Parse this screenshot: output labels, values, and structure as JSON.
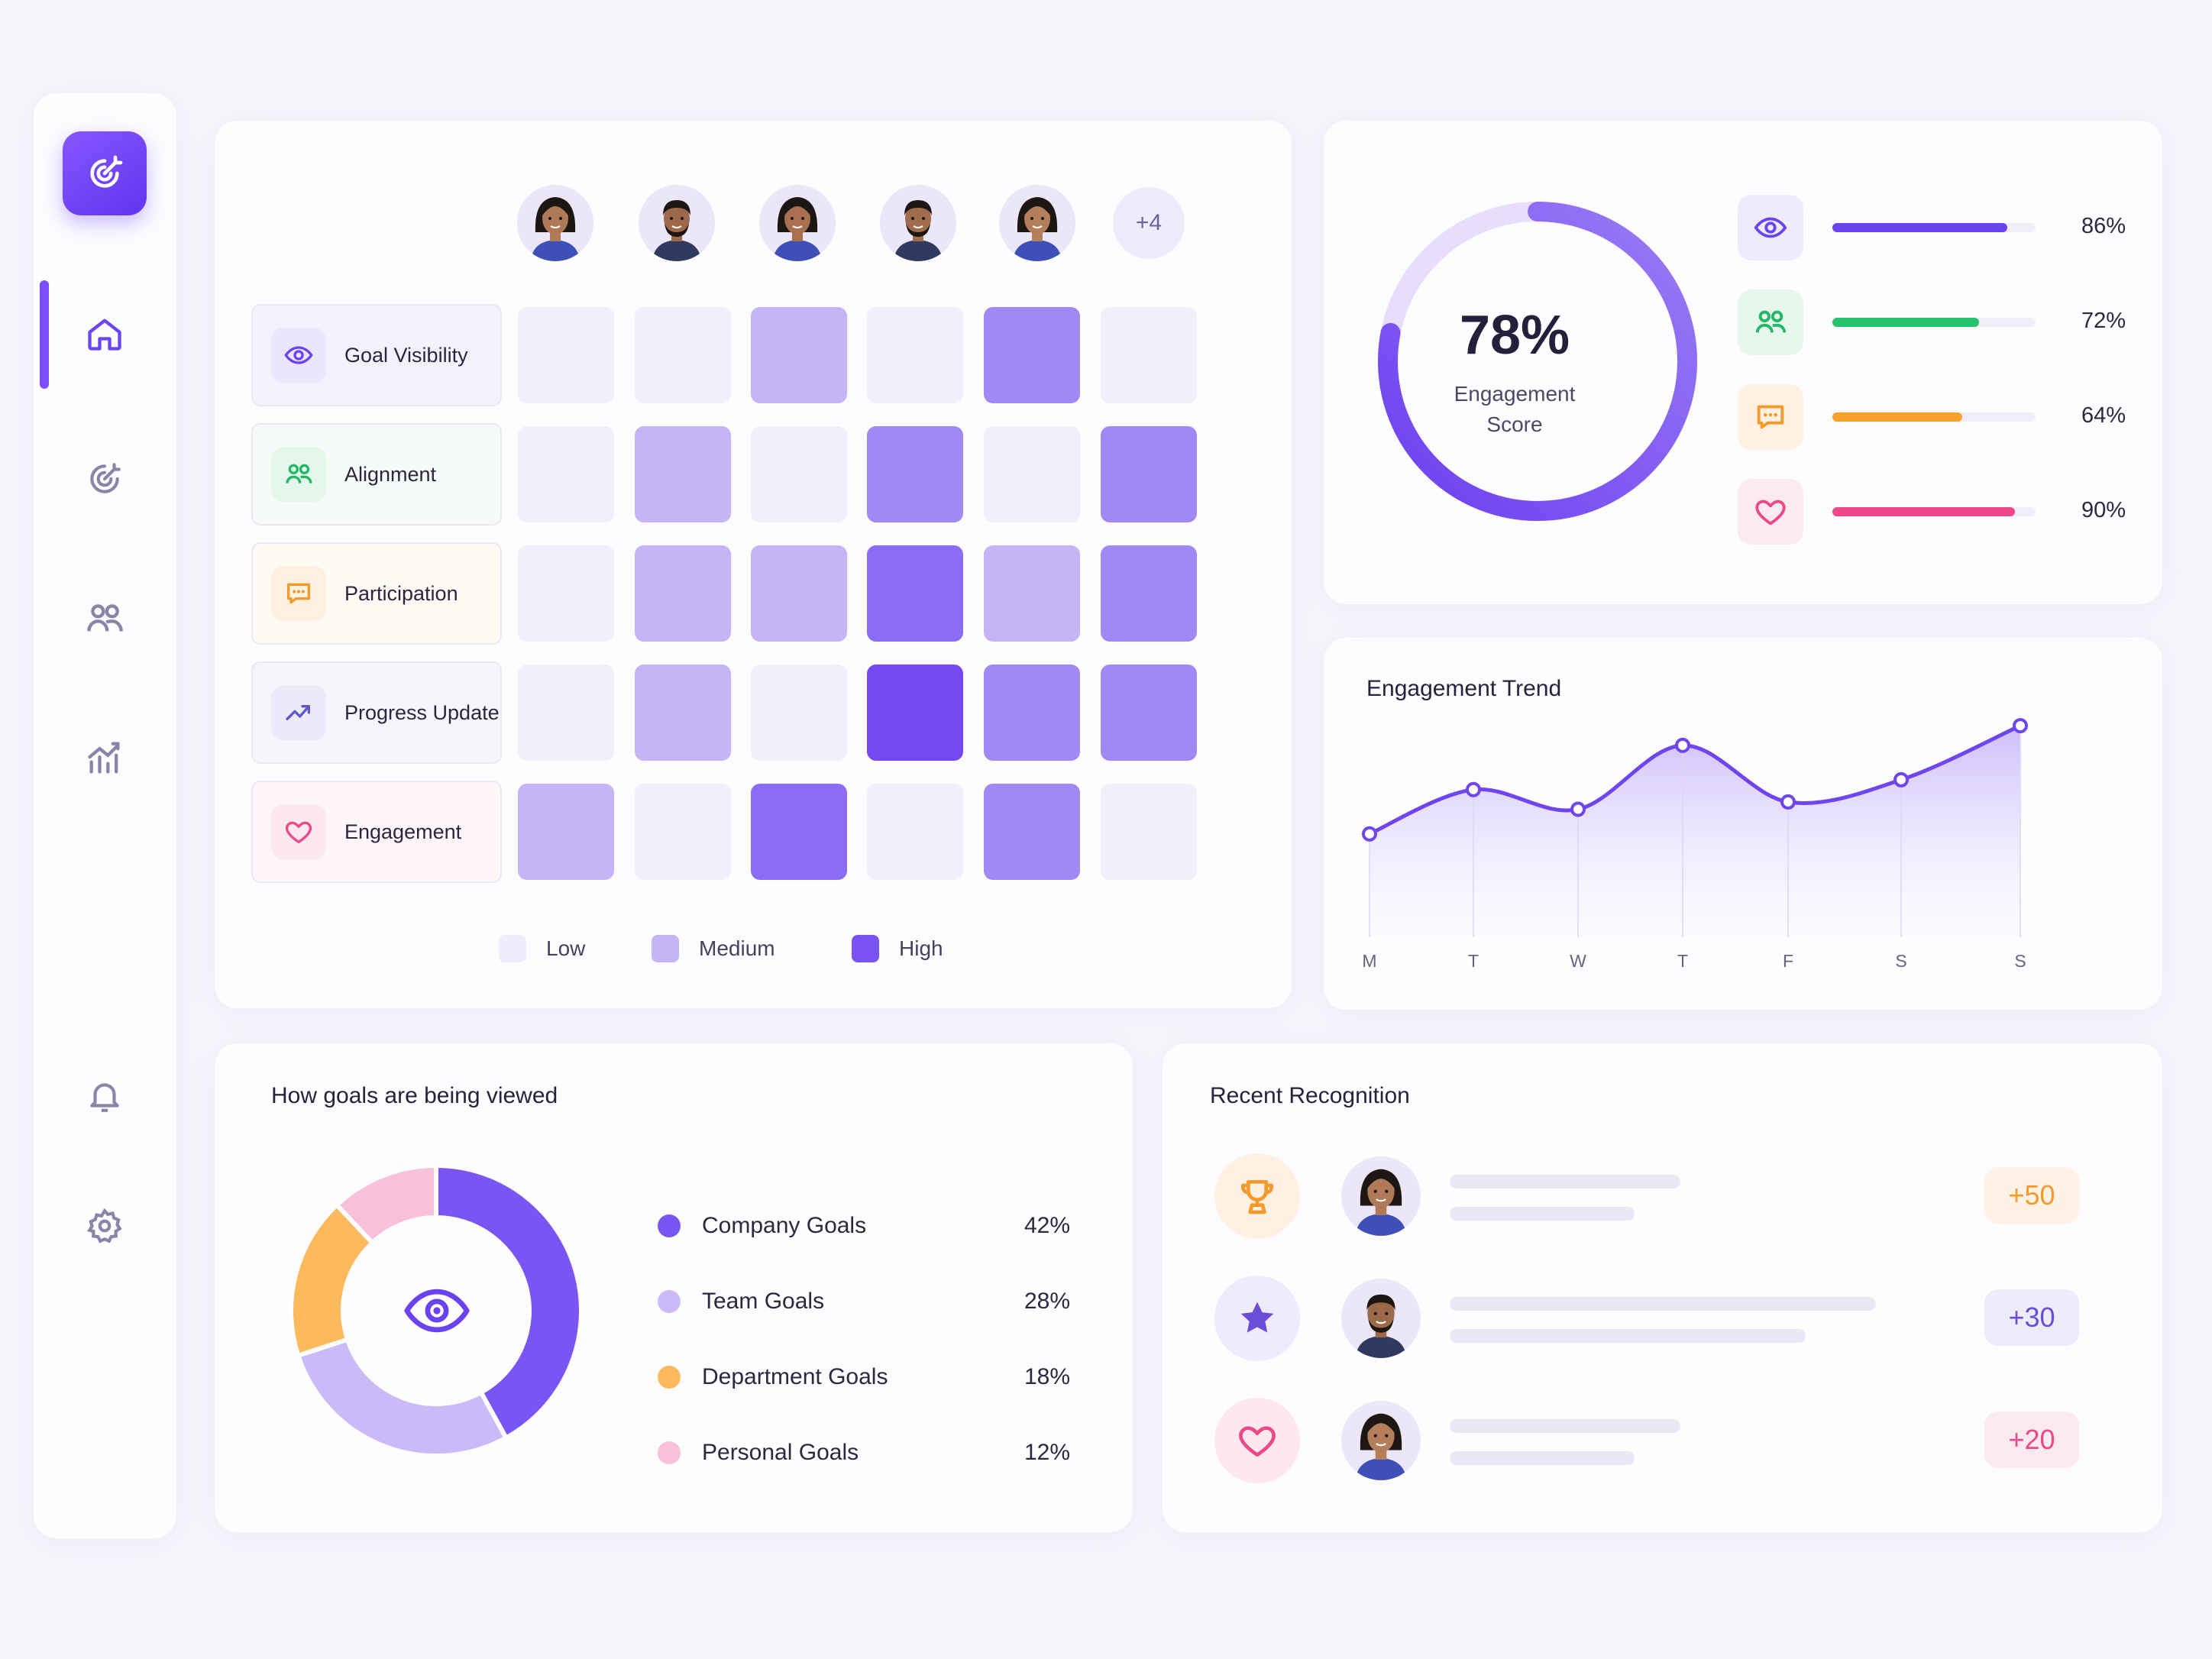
{
  "sidebar": {
    "logo_icon": "target-sparkle-icon",
    "items": [
      {
        "name": "home",
        "icon": "home-icon",
        "active": true
      },
      {
        "name": "goals",
        "icon": "target-icon",
        "active": false
      },
      {
        "name": "team",
        "icon": "users-icon",
        "active": false
      },
      {
        "name": "analytics",
        "icon": "chart-icon",
        "active": false
      },
      {
        "name": "notifications",
        "icon": "bell-icon",
        "active": false
      },
      {
        "name": "settings",
        "icon": "gear-icon",
        "active": false
      }
    ],
    "accent": "#7b4fff"
  },
  "heatmap": {
    "avatars_more": "+4",
    "rows": [
      {
        "label": "Goal Visibility",
        "icon": "eye-icon",
        "levels": [
          0,
          0,
          1,
          0,
          2,
          0
        ]
      },
      {
        "label": "Alignment",
        "icon": "users-icon",
        "levels": [
          0,
          1,
          0,
          2,
          0,
          2
        ]
      },
      {
        "label": "Participation",
        "icon": "chat-icon",
        "levels": [
          0,
          1,
          1,
          3,
          1,
          2
        ]
      },
      {
        "label": "Progress Update",
        "icon": "trend-up-icon",
        "levels": [
          0,
          1,
          0,
          4,
          2,
          2
        ]
      },
      {
        "label": "Engagement",
        "icon": "heart-icon",
        "levels": [
          1,
          0,
          3,
          0,
          2,
          0
        ]
      }
    ],
    "legend": {
      "low": "Low",
      "medium": "Medium",
      "high": "High"
    },
    "level_colors": [
      "#f2eefc",
      "#c5b5f7",
      "#a088f5",
      "#8b6cf4",
      "#7548f1"
    ]
  },
  "score": {
    "value": "78%",
    "label_line1": "Engagement",
    "label_line2": "Score",
    "fraction": 0.78,
    "metrics": [
      {
        "icon": "eye-icon",
        "value": "86%",
        "fraction": 0.86,
        "color": "#6a42f0",
        "bg": "#efeafd"
      },
      {
        "icon": "users-icon",
        "value": "72%",
        "fraction": 0.72,
        "color": "#22c36b",
        "bg": "#e7f7ee"
      },
      {
        "icon": "chat-icon",
        "value": "64%",
        "fraction": 0.64,
        "color": "#f7a12a",
        "bg": "#fff1e2"
      },
      {
        "icon": "heart-icon",
        "value": "90%",
        "fraction": 0.9,
        "color": "#f0468a",
        "bg": "#fde9f1"
      }
    ]
  },
  "trend": {
    "title": "Engagement Trend",
    "days": [
      "M",
      "T",
      "W",
      "T",
      "F",
      "S",
      "S"
    ]
  },
  "chart_data": {
    "type": "area",
    "categories": [
      "M",
      "T",
      "W",
      "T",
      "F",
      "S",
      "S"
    ],
    "values": [
      42,
      60,
      52,
      78,
      55,
      64,
      86
    ],
    "title": "Engagement Trend",
    "ylim": [
      0,
      100
    ],
    "grid": false
  },
  "goals": {
    "title": "How goals are being viewed",
    "center_icon": "eye-icon",
    "items": [
      {
        "label": "Company Goals",
        "value": "42%",
        "fraction": 0.42,
        "color": "#7b55f3"
      },
      {
        "label": "Team Goals",
        "value": "28%",
        "fraction": 0.28,
        "color": "#cbbaf8"
      },
      {
        "label": "Department Goals",
        "value": "18%",
        "fraction": 0.18,
        "color": "#fdb95c"
      },
      {
        "label": "Personal Goals",
        "value": "12%",
        "fraction": 0.12,
        "color": "#f9c0da"
      }
    ]
  },
  "recognition": {
    "title": "Recent Recognition",
    "items": [
      {
        "badge_icon": "trophy-icon",
        "badge_bg": "#fff0e2",
        "points": "+50",
        "points_color": "#f39a2c",
        "points_bg": "#fff2e4"
      },
      {
        "badge_icon": "star-icon",
        "badge_bg": "#efebfc",
        "points": "+30",
        "points_color": "#6a4ed8",
        "points_bg": "#eeebfb"
      },
      {
        "badge_icon": "heart-icon",
        "badge_bg": "#fde8f0",
        "points": "+20",
        "points_color": "#ea4a86",
        "points_bg": "#fdeaf1"
      }
    ]
  }
}
